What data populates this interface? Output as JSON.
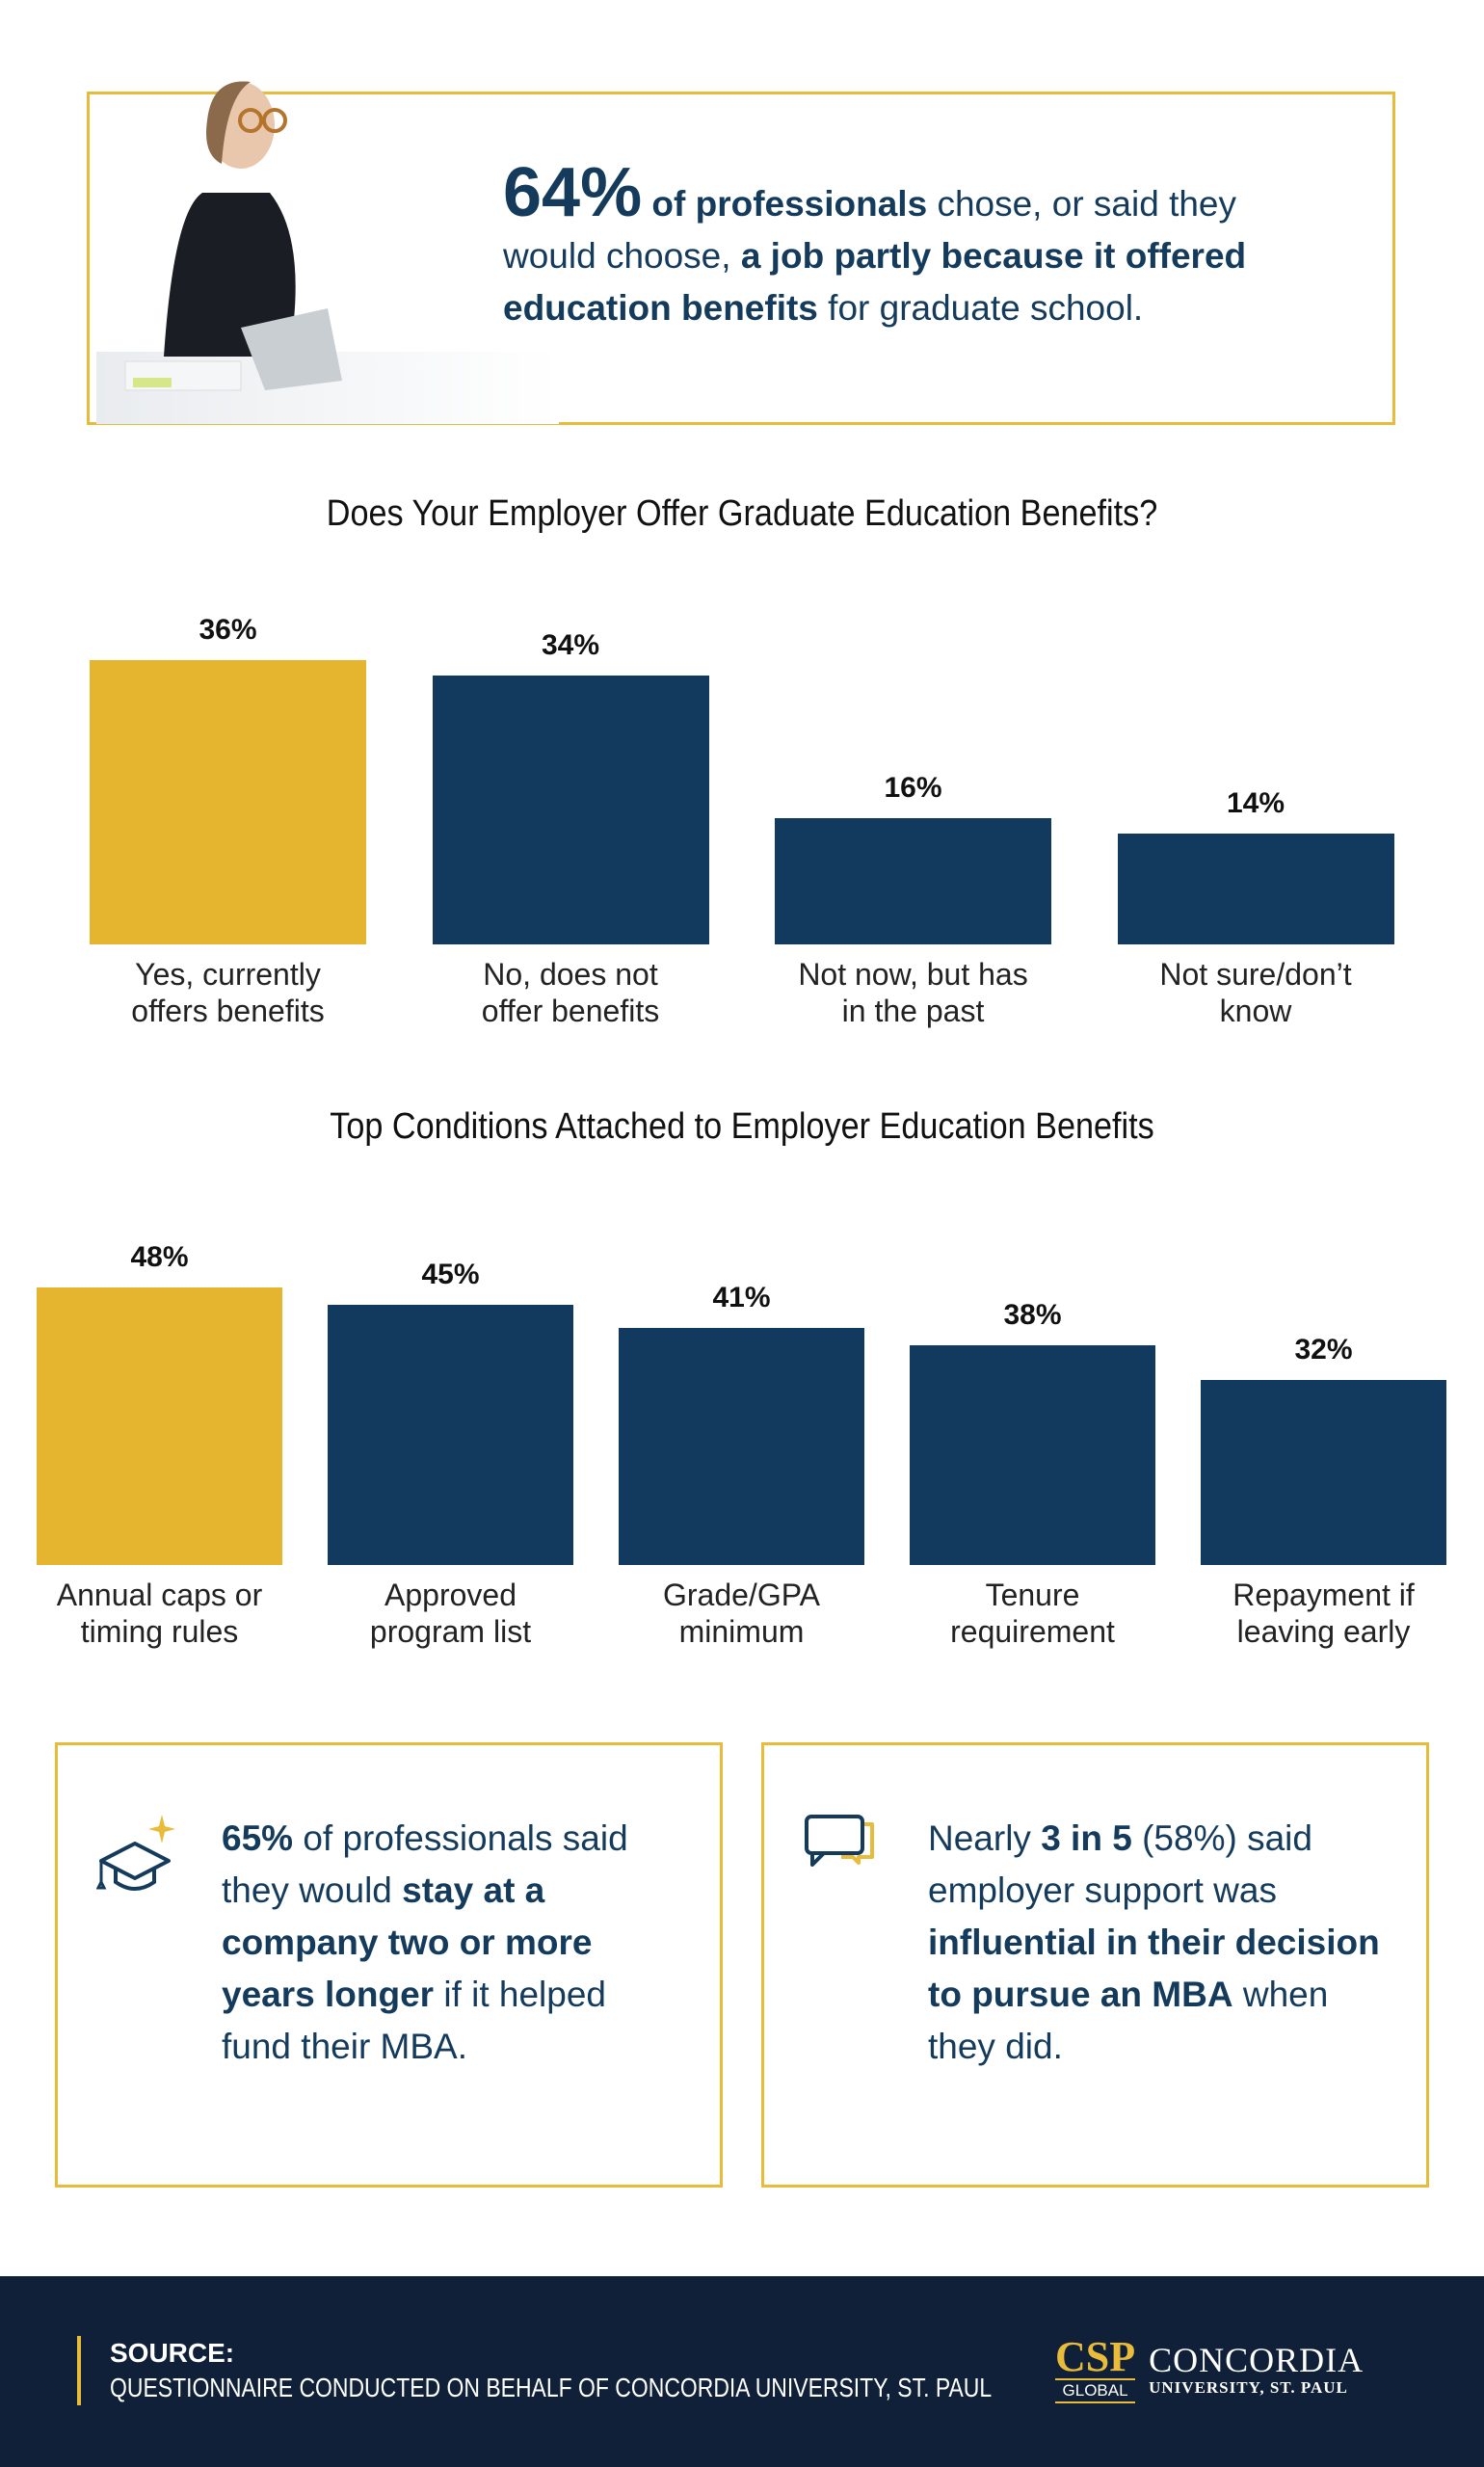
{
  "hero": {
    "stat": "64%",
    "bold1": "of professionals",
    "text1": " chose, or said they would choose, ",
    "bold2": "a job partly because it offered education benefits",
    "text2": " for graduate school."
  },
  "chart_data": [
    {
      "type": "bar",
      "title": "Does Your Employer Offer Graduate Education Benefits?",
      "categories": [
        "Yes, currently offers benefits",
        "No, does not offer benefits",
        "Not now, but has in the past",
        "Not sure/don’t know"
      ],
      "values": [
        36,
        34,
        16,
        14
      ],
      "value_labels": [
        "36%",
        "34%",
        "16%",
        "14%"
      ],
      "highlight_index": 0
    },
    {
      "type": "bar",
      "title": "Top Conditions Attached to Employer Education Benefits",
      "categories": [
        "Annual caps or timing rules",
        "Approved program list",
        "Grade/GPA minimum",
        "Tenure requirement",
        "Repayment if leaving early"
      ],
      "values": [
        48,
        45,
        41,
        38,
        32
      ],
      "value_labels": [
        "48%",
        "45%",
        "41%",
        "38%",
        "32%"
      ],
      "highlight_index": 0
    }
  ],
  "colors": {
    "highlight": "#e6b530",
    "bar": "#123a5e",
    "text": "#143a5c",
    "footer": "#0f2038"
  },
  "cards": [
    {
      "icon": "graduation-cap-icon",
      "b1": "65%",
      "t1": " of professionals said they would ",
      "b2": "stay at a company two or more years longer",
      "t2": " if it helped fund their MBA."
    },
    {
      "icon": "chat-bubbles-icon",
      "t0": "Nearly ",
      "b1": "3 in 5",
      "t1": " (58%) said employer support was ",
      "b2": "influential in their decision to pursue an MBA",
      "t2": " when they did."
    }
  ],
  "footer": {
    "source_label": "SOURCE:",
    "source_text": "QUESTIONNAIRE CONDUCTED ON BEHALF OF CONCORDIA UNIVERSITY, ST. PAUL",
    "logo_csp": "CSP",
    "logo_global": "GLOBAL",
    "logo_name": "CONCORDIA",
    "logo_sub": "UNIVERSITY, ST. PAUL"
  }
}
